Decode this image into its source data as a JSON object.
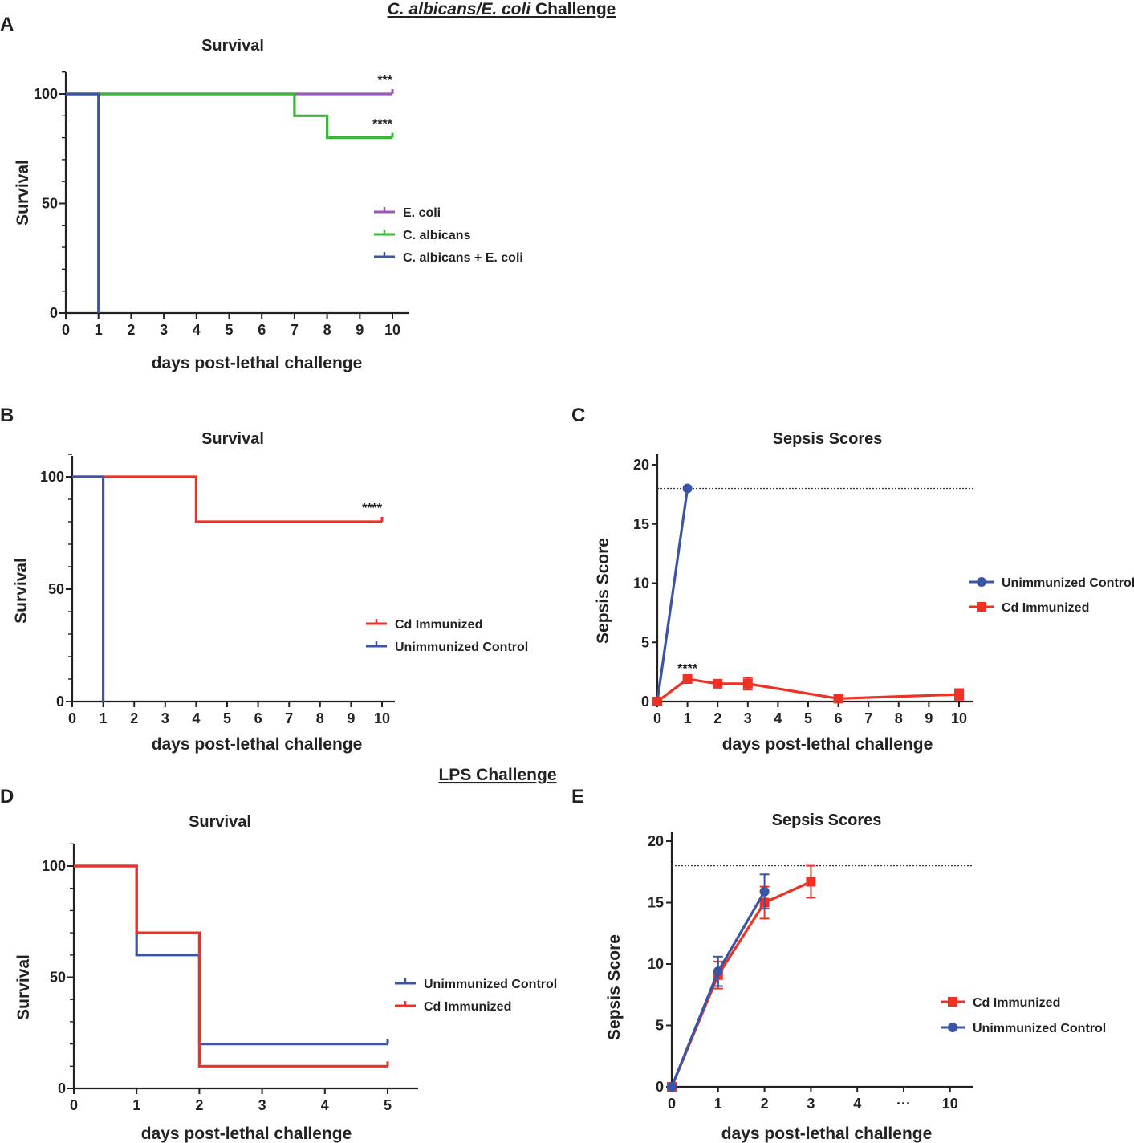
{
  "figure": {
    "header_top_italic": "C. albicans/E. coli",
    "header_top_rest": " Challenge",
    "header_mid": "LPS Challenge"
  },
  "colors": {
    "purple": "#9b59b6",
    "green": "#3cb43c",
    "blue": "#3a55a4",
    "red": "#ee3124",
    "axis": "#222222"
  },
  "chart_data": [
    {
      "id": "A",
      "panel_label": "A",
      "type": "line",
      "subtype": "survival-step",
      "title": "Survival",
      "xlabel": "days post-lethal challenge",
      "ylabel": "Survival",
      "xlim": [
        0,
        10.5
      ],
      "ylim": [
        0,
        110
      ],
      "xticks": [
        0,
        1,
        2,
        3,
        4,
        5,
        6,
        7,
        8,
        9,
        10
      ],
      "yticks": [
        0,
        50,
        100
      ],
      "legend_position": "center-right",
      "series": [
        {
          "name": "E. coli",
          "color": "#9b59b6",
          "x": [
            0,
            10
          ],
          "y": [
            100,
            100
          ],
          "annotation": "***"
        },
        {
          "name": "C. albicans",
          "color": "#3cb43c",
          "x": [
            0,
            7,
            8,
            10
          ],
          "y": [
            100,
            90,
            80,
            80
          ],
          "annotation": "****"
        },
        {
          "name": "C. albicans + E. coli",
          "color": "#3a55a4",
          "x": [
            0,
            1
          ],
          "y": [
            100,
            0
          ]
        }
      ]
    },
    {
      "id": "B",
      "panel_label": "B",
      "type": "line",
      "subtype": "survival-step",
      "title": "Survival",
      "xlabel": "days post-lethal challenge",
      "ylabel": "Survival",
      "xlim": [
        0,
        10.4
      ],
      "ylim": [
        0,
        110
      ],
      "xticks": [
        0,
        1,
        2,
        3,
        4,
        5,
        6,
        7,
        8,
        9,
        10
      ],
      "yticks": [
        0,
        50,
        100
      ],
      "legend_position": "center-right",
      "series": [
        {
          "name": "Cd Immunized",
          "color": "#ee3124",
          "x": [
            0,
            4,
            10
          ],
          "y": [
            100,
            80,
            80
          ],
          "annotation": "****"
        },
        {
          "name": "Unimmunized Control",
          "color": "#3a55a4",
          "x": [
            0,
            1
          ],
          "y": [
            100,
            0
          ]
        }
      ]
    },
    {
      "id": "C",
      "panel_label": "C",
      "type": "line",
      "title": "Sepsis Scores",
      "xlabel": "days post-lethal challenge",
      "ylabel": "Sepsis Score",
      "xlim": [
        0,
        10.4
      ],
      "ylim": [
        0,
        20
      ],
      "xticks": [
        0,
        1,
        2,
        3,
        4,
        5,
        6,
        7,
        8,
        9,
        10
      ],
      "yticks": [
        0,
        5,
        10,
        15,
        20
      ],
      "threshold": 18,
      "legend_position": "center-right",
      "annotations": [
        {
          "x": 1,
          "y": 2.3,
          "text": "****"
        }
      ],
      "series": [
        {
          "name": "Unimmunized Control",
          "color": "#3a55a4",
          "marker": "circle",
          "x": [
            0,
            1
          ],
          "y": [
            0,
            18
          ],
          "err": [
            0,
            0
          ]
        },
        {
          "name": "Cd Immunized",
          "color": "#ee3124",
          "marker": "square",
          "x": [
            0,
            1,
            2,
            3,
            6,
            10
          ],
          "y": [
            0,
            1.9,
            1.5,
            1.5,
            0.25,
            0.6
          ],
          "err": [
            0,
            0.2,
            0.2,
            0.5,
            0.15,
            0.45
          ]
        }
      ]
    },
    {
      "id": "D",
      "panel_label": "D",
      "type": "line",
      "subtype": "survival-step",
      "title": "Survival",
      "xlabel": "days post-lethal challenge",
      "ylabel": "Survival",
      "xlim": [
        0,
        5.5
      ],
      "ylim": [
        0,
        110
      ],
      "xticks": [
        0,
        1,
        2,
        3,
        4,
        5
      ],
      "yticks": [
        0,
        50,
        100
      ],
      "legend_position": "center-right",
      "series": [
        {
          "name": "Unimmunized Control",
          "color": "#3a55a4",
          "x": [
            0,
            1,
            2,
            5
          ],
          "y": [
            100,
            60,
            20,
            20
          ]
        },
        {
          "name": "Cd Immunized",
          "color": "#ee3124",
          "x": [
            0,
            1,
            2,
            5
          ],
          "y": [
            100,
            70,
            10,
            10
          ]
        }
      ]
    },
    {
      "id": "E",
      "panel_label": "E",
      "type": "line",
      "title": "Sepsis Scores",
      "xlabel": "days post-lethal challenge",
      "ylabel": "Sepsis Score",
      "xlim": [
        0,
        6.5
      ],
      "ylim": [
        0,
        20
      ],
      "xticks": [
        0,
        1,
        2,
        3,
        4,
        5,
        6
      ],
      "xtick_labels": [
        "0",
        "1",
        "2",
        "3",
        "4",
        "···",
        "10"
      ],
      "yticks": [
        0,
        5,
        10,
        15,
        20
      ],
      "threshold": 18,
      "legend_position": "center-right",
      "series": [
        {
          "name": "Cd Immunized",
          "color": "#ee3124",
          "marker": "square",
          "x": [
            0,
            1,
            2,
            3
          ],
          "y": [
            0,
            9.1,
            15.0,
            16.7
          ],
          "err": [
            0,
            1.1,
            1.3,
            1.3
          ]
        },
        {
          "name": "Unimmunized Control",
          "color": "#3a55a4",
          "marker": "circle",
          "x": [
            0,
            1,
            2
          ],
          "y": [
            0,
            9.4,
            15.9
          ],
          "err": [
            0,
            1.2,
            1.4
          ]
        }
      ]
    }
  ]
}
